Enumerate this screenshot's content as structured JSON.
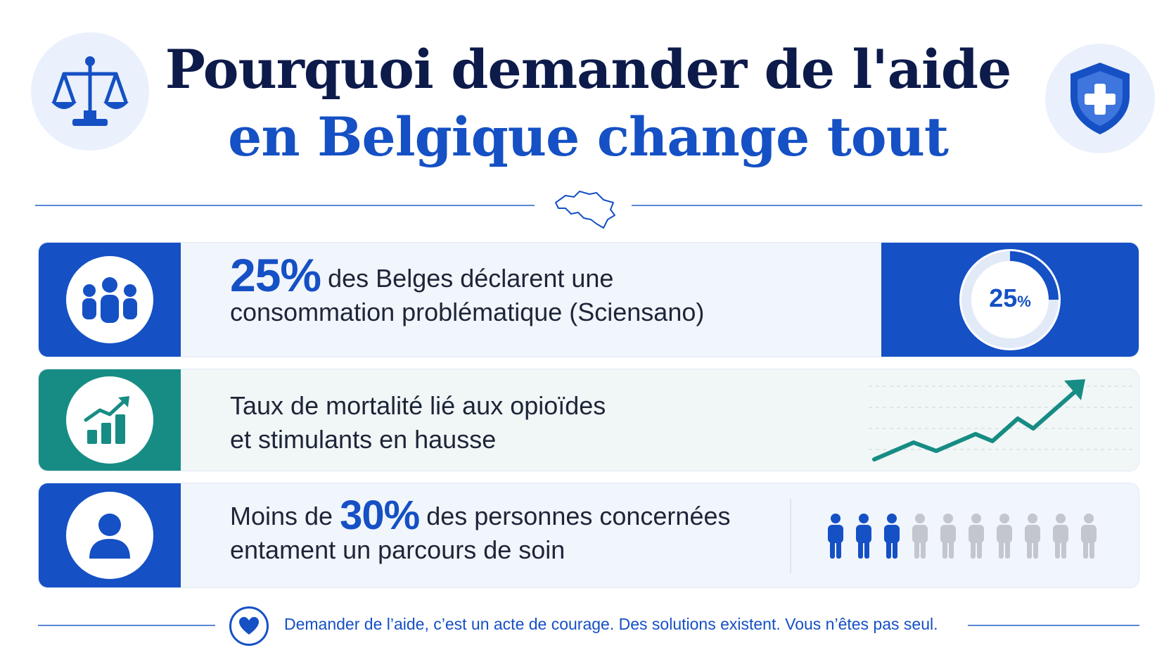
{
  "header": {
    "title_line1": "Pourquoi demander de l'aide",
    "title_line2": "en Belgique change tout",
    "left_icon": "scales-of-justice-icon",
    "right_icon": "medical-shield-icon",
    "divider_icon": "belgium-map-icon"
  },
  "stats": [
    {
      "icon": "group-people-icon",
      "highlight": "25%",
      "line1": "des Belges déclarent une",
      "line2": "consommation problématique (Sciensano)",
      "gauge_value": "25",
      "gauge_unit": "%",
      "gauge_fraction": 0.25
    },
    {
      "icon": "growth-chart-icon",
      "line1": "Taux de mortalité lié aux opioïdes",
      "line2": "et stimulants en hausse",
      "trend_icon": "rising-trend-arrow-icon"
    },
    {
      "icon": "person-icon",
      "prefix": "Moins de",
      "highlight": "30%",
      "line1": "des personnes concernées",
      "line2": "entament un parcours de soin",
      "people_total": 10,
      "people_highlighted": 3
    }
  ],
  "footer": {
    "icon": "heart-icon",
    "text": "Demander de l’aide, c’est un acte de courage. Des solutions existent. Vous n’êtes pas seul."
  },
  "colors": {
    "primary": "#1550c4",
    "navy": "#0d1b4b",
    "teal": "#168c84",
    "muted": "#c3c6cc"
  }
}
